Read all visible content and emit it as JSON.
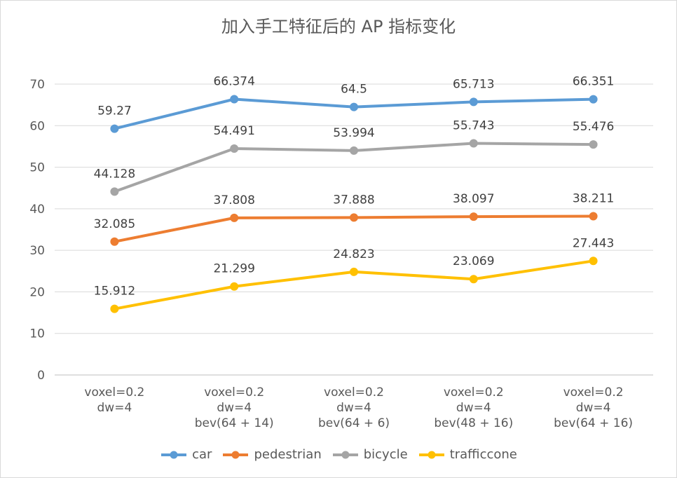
{
  "chart_data": {
    "type": "line",
    "title": "加入手工特征后的 AP 指标变化",
    "categories": [
      [
        "voxel=0.2",
        "dw=4"
      ],
      [
        "voxel=0.2",
        "dw=4",
        "bev(64 + 14)"
      ],
      [
        "voxel=0.2",
        "dw=4",
        "bev(64 + 6)"
      ],
      [
        "voxel=0.2",
        "dw=4",
        "bev(48 + 16)"
      ],
      [
        "voxel=0.2",
        "dw=4",
        "bev(64 + 16)"
      ]
    ],
    "ylim": [
      0,
      70
    ],
    "yticks": [
      0,
      10,
      20,
      30,
      40,
      50,
      60,
      70
    ],
    "grid": true,
    "legend_position": "bottom",
    "series": [
      {
        "name": "car",
        "color": "#5b9bd5",
        "values": [
          59.27,
          66.374,
          64.5,
          65.713,
          66.351
        ],
        "labels": [
          "59.27",
          "66.374",
          "64.5",
          "65.713",
          "66.351"
        ]
      },
      {
        "name": "pedestrian",
        "color": "#ed7d31",
        "values": [
          32.085,
          37.808,
          37.888,
          38.097,
          38.211
        ],
        "labels": [
          "32.085",
          "37.808",
          "37.888",
          "38.097",
          "38.211"
        ]
      },
      {
        "name": "bicycle",
        "color": "#a5a5a5",
        "values": [
          44.128,
          54.491,
          53.994,
          55.743,
          55.476
        ],
        "labels": [
          "44.128",
          "54.491",
          "53.994",
          "55.743",
          "55.476"
        ]
      },
      {
        "name": "trafficcone",
        "color": "#ffc000",
        "values": [
          15.912,
          21.299,
          24.823,
          23.069,
          27.443
        ],
        "labels": [
          "15.912",
          "21.299",
          "24.823",
          "23.069",
          "27.443"
        ]
      }
    ]
  }
}
